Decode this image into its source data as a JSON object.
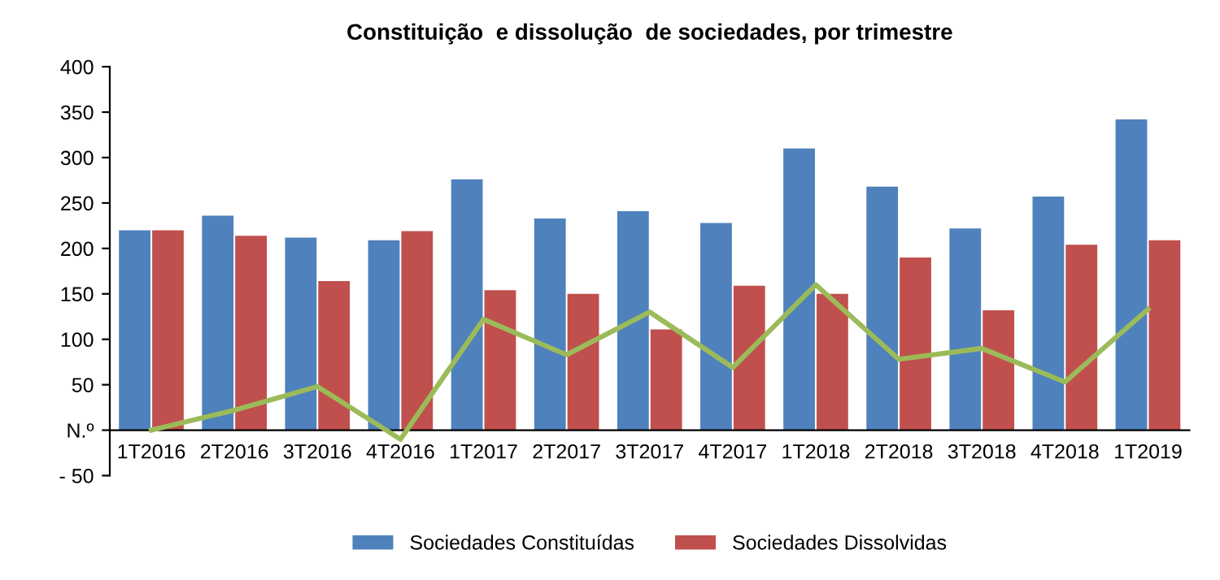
{
  "chart_data": {
    "type": "bar",
    "title": "Constituição  e dissolução  de sociedades, por trimestre",
    "categories": [
      "1T2016",
      "2T2016",
      "3T2016",
      "4T2016",
      "1T2017",
      "2T2017",
      "3T2017",
      "4T2017",
      "1T2018",
      "2T2018",
      "3T2018",
      "4T2018",
      "1T2019"
    ],
    "series": [
      {
        "name": "Sociedades Constituídas",
        "color": "#4f81bd",
        "values": [
          220,
          236,
          212,
          209,
          276,
          233,
          241,
          228,
          310,
          268,
          222,
          257,
          342
        ]
      },
      {
        "name": "Sociedades Dissolvidas",
        "color": "#c0504d",
        "values": [
          220,
          214,
          164,
          219,
          154,
          150,
          111,
          159,
          150,
          190,
          132,
          204,
          209
        ]
      },
      {
        "type": "line",
        "color": "#9bbb59",
        "values": [
          0,
          22,
          48,
          -10,
          122,
          83,
          130,
          69,
          160,
          78,
          90,
          53,
          133
        ]
      }
    ],
    "ylim": [
      -50,
      400
    ],
    "yticks": [
      {
        "value": -50,
        "label": "- 50"
      },
      {
        "value": 0,
        "label": "N.º"
      },
      50,
      100,
      150,
      200,
      250,
      300,
      350,
      400
    ],
    "grid": false,
    "legend": "bottom"
  }
}
